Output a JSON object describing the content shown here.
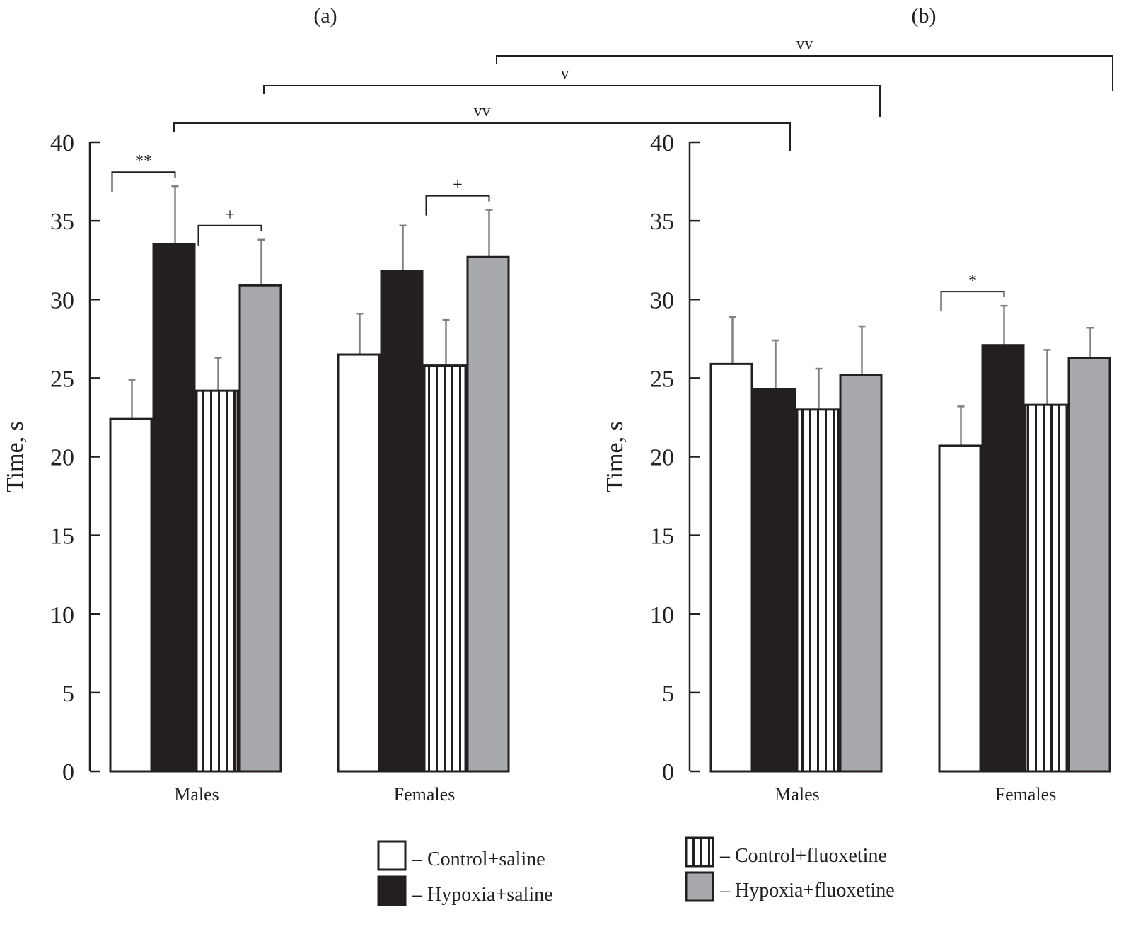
{
  "chart_data": [
    {
      "type": "bar",
      "panel_label": "(a)",
      "ylabel": "Time, s",
      "ylim": [
        0,
        40
      ],
      "yticks": [
        0,
        5,
        10,
        15,
        20,
        25,
        30,
        35,
        40
      ],
      "categories": [
        "Males",
        "Females"
      ],
      "series": [
        {
          "name": "Control+saline",
          "values": [
            22.4,
            26.5
          ],
          "errors": [
            2.5,
            2.6
          ]
        },
        {
          "name": "Hypoxia+saline",
          "values": [
            33.5,
            31.8
          ],
          "errors": [
            3.7,
            2.9
          ]
        },
        {
          "name": "Control+fluoxetine",
          "values": [
            24.2,
            25.8
          ],
          "errors": [
            2.1,
            2.9
          ]
        },
        {
          "name": "Hypoxia+fluoxetine",
          "values": [
            30.9,
            32.7
          ],
          "errors": [
            2.9,
            3.0
          ]
        }
      ],
      "annotations": [
        {
          "text": "**",
          "category": "Males",
          "between": [
            "Control+saline",
            "Hypoxia+saline"
          ]
        },
        {
          "text": "+",
          "category": "Males",
          "between": [
            "Control+fluoxetine",
            "Hypoxia+fluoxetine"
          ]
        },
        {
          "text": "+",
          "category": "Females",
          "between": [
            "Control+fluoxetine",
            "Hypoxia+fluoxetine"
          ]
        }
      ]
    },
    {
      "type": "bar",
      "panel_label": "(b)",
      "ylabel": "Time, s",
      "ylim": [
        0,
        40
      ],
      "yticks": [
        0,
        5,
        10,
        15,
        20,
        25,
        30,
        35,
        40
      ],
      "categories": [
        "Males",
        "Females"
      ],
      "series": [
        {
          "name": "Control+saline",
          "values": [
            25.9,
            20.7
          ],
          "errors": [
            3.0,
            2.5
          ]
        },
        {
          "name": "Hypoxia+saline",
          "values": [
            24.3,
            27.1
          ],
          "errors": [
            3.1,
            2.5
          ]
        },
        {
          "name": "Control+fluoxetine",
          "values": [
            23.0,
            23.3
          ],
          "errors": [
            2.6,
            3.5
          ]
        },
        {
          "name": "Hypoxia+fluoxetine",
          "values": [
            25.2,
            26.3
          ],
          "errors": [
            3.1,
            1.9
          ]
        }
      ],
      "annotations": [
        {
          "text": "*",
          "category": "Females",
          "between": [
            "Control+saline",
            "Hypoxia+saline"
          ]
        }
      ]
    }
  ],
  "cross_panel_annotations": [
    {
      "text": "vv",
      "from": "(a) Males Hypoxia+saline",
      "to": "(b) Males Hypoxia+saline"
    },
    {
      "text": "v",
      "from": "(a) Males Control+fluoxetine",
      "to": "(b) Males Hypoxia+fluoxetine"
    },
    {
      "text": "vv",
      "from": "(a) Females Hypoxia+saline",
      "to": "(b) Females Hypoxia+fluoxetine"
    }
  ],
  "legend": [
    {
      "label": "– Control+saline",
      "style": "white"
    },
    {
      "label": "– Hypoxia+saline",
      "style": "black"
    },
    {
      "label": "– Control+fluoxetine",
      "style": "striped"
    },
    {
      "label": "– Hypoxia+fluoxetine",
      "style": "gray"
    }
  ],
  "colors": {
    "white": "#ffffff",
    "black": "#231f20",
    "gray": "#a7a9ac",
    "outline": "#231f20",
    "errorbar": "#808080"
  }
}
